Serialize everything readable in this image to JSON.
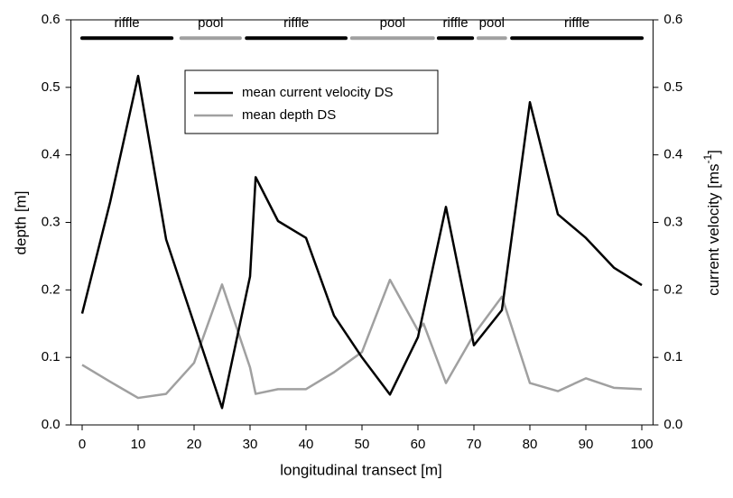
{
  "chart_data": {
    "type": "line",
    "xlabel": "longitudinal transect [m]",
    "ylabel": "depth [m]",
    "y2label": [
      "current velocity [ms",
      "-1",
      "]"
    ],
    "xlim": [
      -2,
      102
    ],
    "xticks": [
      0,
      10,
      20,
      30,
      40,
      50,
      60,
      70,
      80,
      90,
      100
    ],
    "ylim": [
      0,
      0.6
    ],
    "yticks": [
      {
        "value": 0,
        "label": "0.0"
      },
      0.1,
      0.2,
      0.3,
      0.4,
      0.5,
      0.6
    ],
    "y2lim": [
      0,
      0.6
    ],
    "y2ticks": [
      {
        "value": 0,
        "label": "0.0"
      },
      0.1,
      0.2,
      0.3,
      0.4,
      0.5,
      0.6
    ],
    "series": [
      {
        "name": "mean current velocity DS",
        "color": "#000000",
        "axis": "y2",
        "x": [
          0,
          5,
          10,
          15,
          20,
          25,
          30,
          31,
          35,
          40,
          45,
          50,
          55,
          60,
          65,
          70,
          75,
          80,
          85,
          90,
          95,
          100
        ],
        "values": [
          0.165,
          0.33,
          0.517,
          0.275,
          0.15,
          0.025,
          0.22,
          0.367,
          0.302,
          0.277,
          0.162,
          0.1,
          0.045,
          0.13,
          0.323,
          0.118,
          0.17,
          0.478,
          0.312,
          0.277,
          0.233,
          0.207
        ]
      },
      {
        "name": "mean depth DS",
        "color": "#a0a0a0",
        "x": [
          0,
          5,
          10,
          15,
          20,
          25,
          30,
          31,
          35,
          40,
          45,
          50,
          55,
          60,
          61,
          65,
          70,
          75,
          80,
          85,
          90,
          95,
          100
        ],
        "values": [
          0.089,
          0.064,
          0.04,
          0.046,
          0.092,
          0.208,
          0.085,
          0.046,
          0.053,
          0.053,
          0.078,
          0.108,
          0.215,
          0.14,
          0.15,
          0.062,
          0.134,
          0.19,
          0.062,
          0.05,
          0.069,
          0.055,
          0.053
        ]
      }
    ],
    "segments": {
      "y": 0.573,
      "items": [
        {
          "label": "riffle",
          "start": 0,
          "end": 16,
          "color": "#000000"
        },
        {
          "label": "pool",
          "start": 17.7,
          "end": 28.2,
          "color": "#a0a0a0"
        },
        {
          "label": "riffle",
          "start": 29.4,
          "end": 47.1,
          "color": "#000000"
        },
        {
          "label": "pool",
          "start": 48.2,
          "end": 62.7,
          "color": "#a0a0a0"
        },
        {
          "label": "riffle",
          "start": 63.7,
          "end": 69.7,
          "color": "#000000"
        },
        {
          "label": "pool",
          "start": 70.8,
          "end": 75.6,
          "color": "#a0a0a0"
        },
        {
          "label": "riffle",
          "start": 76.8,
          "end": 100,
          "color": "#000000"
        }
      ]
    }
  }
}
